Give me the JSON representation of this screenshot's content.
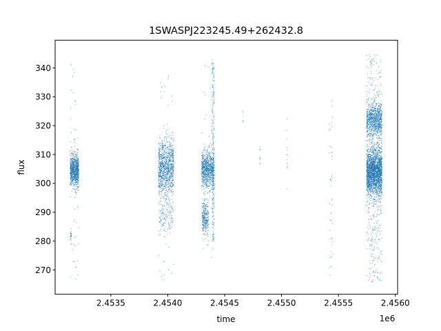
{
  "chart_data": {
    "type": "scatter",
    "title": "1SWASPJ223245.49+262432.8",
    "xlabel": "time",
    "ylabel": "flux",
    "x_offset_label": "1e6",
    "xlim": [
      2453010,
      2456020
    ],
    "ylim": [
      261.6,
      349.6
    ],
    "x_ticks": [
      2453500,
      2454000,
      2454500,
      2455000,
      2455500,
      2456000
    ],
    "x_tick_labels": [
      "2.4535",
      "2.4540",
      "2.4545",
      "2.4550",
      "2.4555",
      "2.4560"
    ],
    "y_ticks": [
      270,
      280,
      290,
      300,
      310,
      320,
      330,
      340
    ],
    "y_tick_labels": [
      "270",
      "280",
      "290",
      "300",
      "310",
      "320",
      "330",
      "340"
    ],
    "grid": false,
    "legend": "none",
    "marker_color": "#1f77b4",
    "point_groups": [
      {
        "x_range": [
          2453140,
          2453215
        ],
        "y_mean": 304.5,
        "y_sd": 2.6,
        "n": 900
      },
      {
        "x_range": [
          2453140,
          2453150
        ],
        "y_mean": 282,
        "y_sd": 1.5,
        "n": 25
      },
      {
        "x_range": [
          2453140,
          2453215
        ],
        "y_range": [
          266,
          343
        ],
        "n": 60
      },
      {
        "x_range": [
          2453915,
          2454050
        ],
        "y_mean": 305,
        "y_sd": 5,
        "n": 1100
      },
      {
        "x_range": [
          2453920,
          2454045
        ],
        "y_mean": 288,
        "y_sd": 3,
        "n": 120
      },
      {
        "x_range": [
          2453915,
          2454050
        ],
        "y_range": [
          266,
          341
        ],
        "n": 60
      },
      {
        "x_range": [
          2454295,
          2454405
        ],
        "y_mean": 305,
        "y_sd": 3.2,
        "n": 900
      },
      {
        "x_range": [
          2454300,
          2454355
        ],
        "y_mean": 288,
        "y_sd": 3,
        "n": 300
      },
      {
        "x_range": [
          2454385,
          2454405
        ],
        "y_range": [
          280,
          342
        ],
        "n": 250
      },
      {
        "x_range": [
          2454295,
          2454405
        ],
        "y_range": [
          266,
          343
        ],
        "n": 40
      },
      {
        "x_range": [
          2454655,
          2454660
        ],
        "y_range": [
          321,
          331
        ],
        "n": 6
      },
      {
        "x_range": [
          2454805,
          2454810
        ],
        "y_range": [
          305,
          313
        ],
        "n": 10
      },
      {
        "x_range": [
          2455042,
          2455047
        ],
        "y_range": [
          289,
          323
        ],
        "n": 12
      },
      {
        "x_range": [
          2455418,
          2455445
        ],
        "y_range": [
          268,
          331
        ],
        "n": 45
      },
      {
        "x_range": [
          2455745,
          2455880
        ],
        "y_mean": 304,
        "y_sd": 4,
        "n": 2200
      },
      {
        "x_range": [
          2455745,
          2455880
        ],
        "y_mean": 322,
        "y_sd": 3,
        "n": 900
      },
      {
        "x_range": [
          2455745,
          2455880
        ],
        "y_range": [
          266,
          345
        ],
        "n": 450
      }
    ]
  }
}
